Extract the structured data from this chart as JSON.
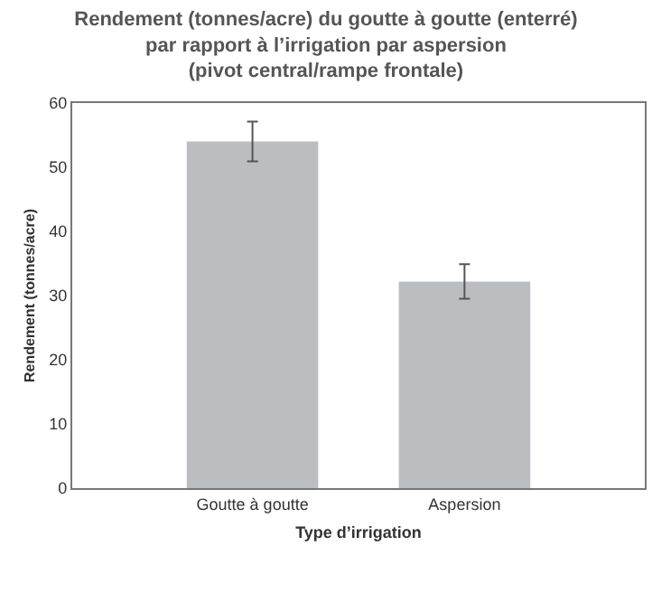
{
  "chart_data": {
    "type": "bar",
    "title": "Rendement (tonnes/acre) du goutte à goutte (enterré)\npar rapport à l’irrigation par aspersion\n(pivot central/rampe frontale)",
    "xlabel": "Type d’irrigation",
    "ylabel": "Rendement (tonnes/acre)",
    "categories": [
      "Goutte à goutte",
      "Aspersion"
    ],
    "values": [
      54,
      32.2
    ],
    "errors": [
      3.1,
      2.7
    ],
    "color": "#bcbdc1",
    "ylim": [
      0,
      60
    ],
    "yticks": [
      0,
      10,
      20,
      30,
      40,
      50,
      60
    ],
    "grid": false,
    "legend": false
  }
}
